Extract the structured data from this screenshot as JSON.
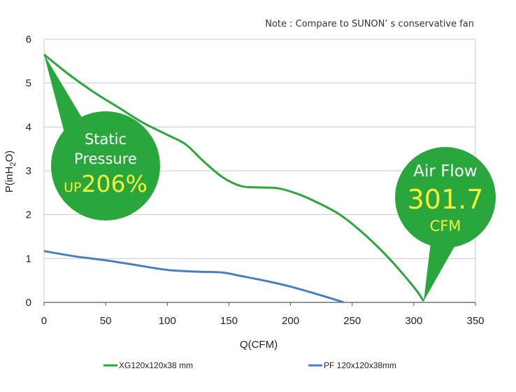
{
  "note": "Note : Compare to SUNON’ s conservative fan",
  "chart_data": {
    "type": "line",
    "xlabel": "Q(CFM)",
    "ylabel": "P(inH2O)",
    "xlim": [
      0,
      350
    ],
    "ylim": [
      0,
      6
    ],
    "xticks": [
      "0",
      "50",
      "100",
      "150",
      "200",
      "250",
      "300",
      "350"
    ],
    "yticks": [
      "0",
      "1",
      "2",
      "3",
      "4",
      "5",
      "6"
    ],
    "grid": "horizontal",
    "series": [
      {
        "name": "XG120x120x38 mm",
        "color": "#2aa73c",
        "x": [
          0,
          20,
          40,
          60,
          80,
          100,
          115,
          130,
          145,
          160,
          175,
          190,
          205,
          220,
          240,
          260,
          280,
          300,
          308
        ],
        "y": [
          5.65,
          5.2,
          4.8,
          4.45,
          4.1,
          3.82,
          3.6,
          3.2,
          2.85,
          2.65,
          2.62,
          2.6,
          2.48,
          2.3,
          2.0,
          1.55,
          1.0,
          0.35,
          0.03
        ]
      },
      {
        "name": "PF 120x120x38mm",
        "color": "#4a7fbf",
        "x": [
          0,
          25,
          50,
          75,
          100,
          125,
          145,
          160,
          180,
          200,
          220,
          240,
          243
        ],
        "y": [
          1.17,
          1.05,
          0.96,
          0.85,
          0.74,
          0.7,
          0.68,
          0.6,
          0.49,
          0.36,
          0.2,
          0.03,
          0.0
        ]
      }
    ],
    "callouts": {
      "static": {
        "line1": "Static",
        "line2": "Pressure",
        "prefix": "UP",
        "value": "206%"
      },
      "airflow": {
        "line1": "Air Flow",
        "value": "301.7",
        "unit": "CFM"
      }
    },
    "legend_position": "bottom"
  }
}
